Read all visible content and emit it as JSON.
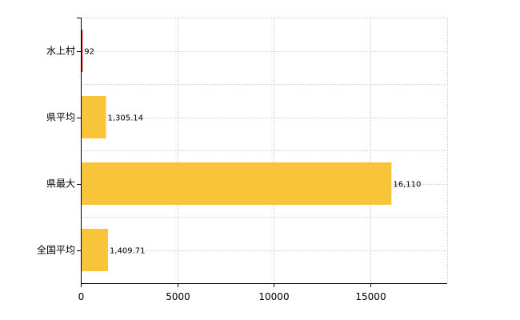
{
  "chart_data": {
    "type": "bar",
    "orientation": "horizontal",
    "title": "",
    "xlabel": "",
    "ylabel": "",
    "categories": [
      "水上村",
      "県平均",
      "県最大",
      "全国平均"
    ],
    "values": [
      92,
      1305.14,
      16110,
      1409.71
    ],
    "data_labels": [
      "92",
      "1,305.14",
      "16,110",
      "1,409.71"
    ],
    "bar_colors": [
      "#c00000",
      "#f8c43a",
      "#f8c43a",
      "#f8c43a"
    ],
    "xlim": [
      0,
      19000
    ],
    "x_ticks": [
      0,
      5000,
      10000,
      15000
    ],
    "x_tick_labels": [
      "0",
      "5000",
      "10000",
      "15000"
    ],
    "grid": true,
    "legend": "none"
  }
}
